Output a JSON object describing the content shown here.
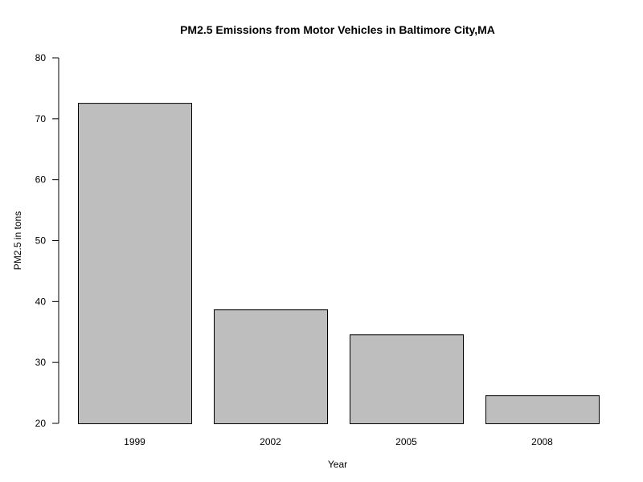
{
  "chart_data": {
    "type": "bar",
    "title": "PM2.5 Emissions from Motor Vehicles in Baltimore City,MA",
    "xlabel": "Year",
    "ylabel": "PM2.5 in tons",
    "categories": [
      "1999",
      "2002",
      "2005",
      "2008"
    ],
    "values": [
      72.6,
      38.7,
      34.6,
      24.6
    ],
    "ylim": [
      20,
      80
    ],
    "yticks": [
      20,
      30,
      40,
      50,
      60,
      70,
      80
    ],
    "grid": false,
    "legend": "none",
    "bar_color": "#bebebe",
    "bar_border_color": "#000000"
  }
}
